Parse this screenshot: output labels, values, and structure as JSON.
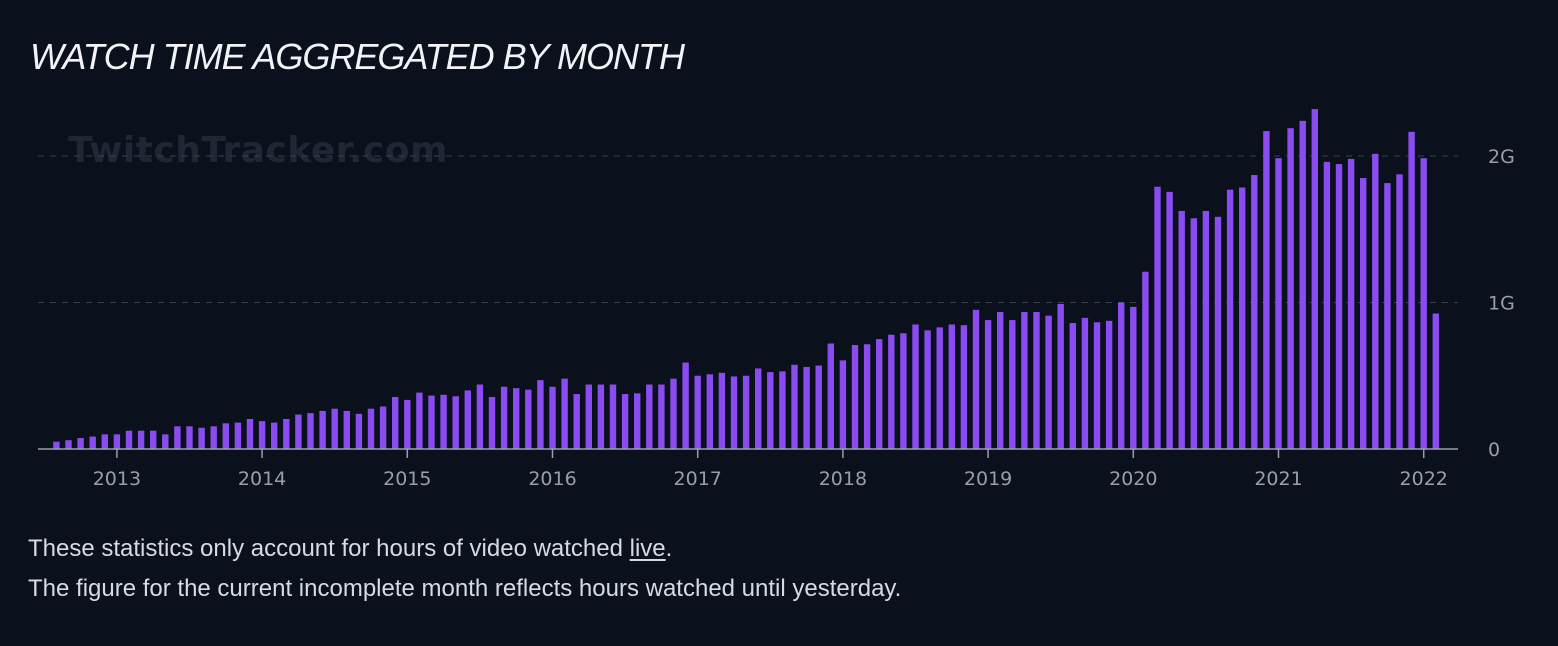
{
  "title": "WATCH TIME AGGREGATED BY MONTH",
  "watermark": "TwitchTracker.com",
  "notes": {
    "line1_prefix": "These statistics only account for hours of video watched ",
    "line1_link": "live",
    "line1_suffix": ".",
    "line2": "The figure for the current incomplete month reflects hours watched until yesterday."
  },
  "colors": {
    "background": "#0a111d",
    "bar": "#8a4cf0",
    "grid": "#3a4150",
    "axis": "#9a9ea8",
    "text": "#d7dae2"
  },
  "chart_data": {
    "type": "bar",
    "x_start": "2012-08",
    "x_unit": "month",
    "ylim": [
      0,
      2000000000
    ],
    "yticks": [
      {
        "value": 0,
        "label": "0"
      },
      {
        "value": 1000000000,
        "label": "1G"
      },
      {
        "value": 2000000000,
        "label": "2G"
      }
    ],
    "xticks": [
      {
        "month": "2013-01",
        "label": "2013"
      },
      {
        "month": "2014-01",
        "label": "2014"
      },
      {
        "month": "2015-01",
        "label": "2015"
      },
      {
        "month": "2016-01",
        "label": "2016"
      },
      {
        "month": "2017-01",
        "label": "2017"
      },
      {
        "month": "2018-01",
        "label": "2018"
      },
      {
        "month": "2019-01",
        "label": "2019"
      },
      {
        "month": "2020-01",
        "label": "2020"
      },
      {
        "month": "2021-01",
        "label": "2021"
      },
      {
        "month": "2022-01",
        "label": "2022"
      }
    ],
    "grid": true,
    "values": [
      50000000,
      60000000,
      75000000,
      85000000,
      100000000,
      100000000,
      125000000,
      125000000,
      125000000,
      100000000,
      155000000,
      155000000,
      145000000,
      155000000,
      175000000,
      180000000,
      205000000,
      190000000,
      180000000,
      205000000,
      235000000,
      245000000,
      260000000,
      275000000,
      260000000,
      240000000,
      275000000,
      290000000,
      355000000,
      335000000,
      385000000,
      365000000,
      370000000,
      360000000,
      400000000,
      440000000,
      355000000,
      425000000,
      415000000,
      405000000,
      470000000,
      425000000,
      480000000,
      375000000,
      440000000,
      440000000,
      440000000,
      375000000,
      380000000,
      440000000,
      440000000,
      480000000,
      590000000,
      500000000,
      510000000,
      520000000,
      495000000,
      500000000,
      550000000,
      525000000,
      530000000,
      575000000,
      560000000,
      570000000,
      720000000,
      605000000,
      710000000,
      715000000,
      750000000,
      780000000,
      790000000,
      850000000,
      810000000,
      830000000,
      850000000,
      845000000,
      950000000,
      880000000,
      935000000,
      880000000,
      935000000,
      935000000,
      910000000,
      990000000,
      860000000,
      895000000,
      865000000,
      875000000,
      1000000000,
      970000000,
      1210000000,
      1790000000,
      1755000000,
      1625000000,
      1575000000,
      1625000000,
      1585000000,
      1770000000,
      1785000000,
      1870000000,
      2170000000,
      1985000000,
      2190000000,
      2240000000,
      2320000000,
      1960000000,
      1945000000,
      1980000000,
      1850000000,
      2015000000,
      1815000000,
      1875000000,
      2165000000,
      1985000000,
      925000000
    ]
  }
}
